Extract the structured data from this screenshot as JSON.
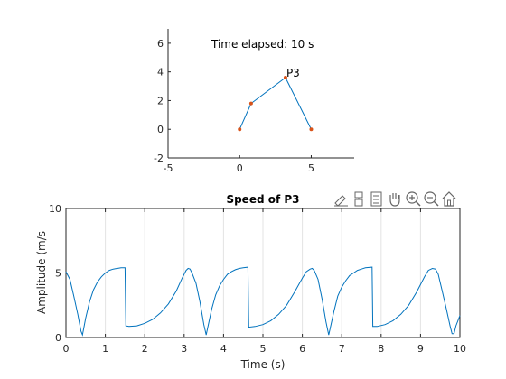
{
  "chart_data": [
    {
      "type": "line",
      "title": "",
      "annotation": "Time elapsed: 10 s",
      "xlim": [
        -5,
        8
      ],
      "ylim": [
        -2,
        7
      ],
      "xticks": [
        -5,
        0,
        5
      ],
      "yticks": [
        -2,
        0,
        2,
        4,
        6
      ],
      "grid": false,
      "series": [
        {
          "x": [
            0,
            0.8,
            3.2,
            5
          ],
          "y": [
            0,
            1.8,
            3.6,
            0
          ],
          "color": "#0072BD",
          "marker_color": "#D95319"
        }
      ],
      "point_label": "P3",
      "point_label_index": 2
    },
    {
      "type": "line",
      "title": "Speed of P3",
      "xlabel": "Time (s)",
      "ylabel": "Amplitude (m/s",
      "xlim": [
        0,
        10
      ],
      "ylim": [
        0,
        10
      ],
      "xticks": [
        0,
        1,
        2,
        3,
        4,
        5,
        6,
        7,
        8,
        9,
        10
      ],
      "yticks": [
        0,
        5,
        10
      ],
      "grid": true,
      "series": [
        {
          "color": "#0072BD",
          "x": [
            0,
            0.1,
            0.2,
            0.3,
            0.38,
            0.42,
            0.5,
            0.6,
            0.7,
            0.8,
            0.9,
            1.0,
            1.1,
            1.2,
            1.3,
            1.4,
            1.5,
            1.52,
            1.6,
            1.8,
            2.0,
            2.2,
            2.4,
            2.6,
            2.8,
            2.95,
            3.05,
            3.1,
            3.15,
            3.2,
            3.3,
            3.4,
            3.5,
            3.56,
            3.6,
            3.7,
            3.8,
            3.9,
            4.0,
            4.1,
            4.2,
            4.3,
            4.4,
            4.5,
            4.62,
            4.64,
            4.8,
            5.0,
            5.2,
            5.4,
            5.6,
            5.8,
            6.0,
            6.1,
            6.2,
            6.25,
            6.3,
            6.4,
            6.5,
            6.6,
            6.67,
            6.7,
            6.8,
            6.9,
            7.0,
            7.1,
            7.2,
            7.3,
            7.4,
            7.5,
            7.6,
            7.77,
            7.79,
            7.9,
            8.1,
            8.3,
            8.5,
            8.7,
            8.9,
            9.1,
            9.2,
            9.3,
            9.38,
            9.45,
            9.55,
            9.65,
            9.75,
            9.8,
            9.85,
            9.9,
            10.0
          ],
          "y": [
            5.1,
            4.5,
            3.2,
            1.8,
            0.5,
            0.2,
            1.5,
            2.8,
            3.7,
            4.3,
            4.7,
            5.0,
            5.2,
            5.3,
            5.35,
            5.4,
            5.4,
            0.9,
            0.85,
            0.9,
            1.1,
            1.4,
            1.9,
            2.6,
            3.6,
            4.6,
            5.2,
            5.35,
            5.3,
            5.0,
            4.2,
            2.8,
            1.0,
            0.2,
            0.8,
            2.2,
            3.3,
            4.0,
            4.5,
            4.9,
            5.1,
            5.25,
            5.35,
            5.4,
            5.45,
            0.8,
            0.85,
            1.0,
            1.3,
            1.8,
            2.5,
            3.5,
            4.6,
            5.1,
            5.3,
            5.35,
            5.2,
            4.5,
            3.0,
            1.2,
            0.2,
            0.6,
            2.0,
            3.2,
            3.9,
            4.4,
            4.8,
            5.0,
            5.2,
            5.3,
            5.4,
            5.45,
            0.85,
            0.85,
            1.0,
            1.3,
            1.8,
            2.5,
            3.5,
            4.7,
            5.2,
            5.35,
            5.3,
            4.9,
            3.6,
            2.3,
            0.9,
            0.3,
            0.3,
            0.9,
            1.7
          ]
        }
      ]
    }
  ],
  "toolbar": {
    "icons": [
      "edit-plot-icon",
      "data-tips-icon",
      "brush-icon",
      "pan-icon",
      "zoom-in-icon",
      "zoom-out-icon",
      "home-icon"
    ]
  }
}
